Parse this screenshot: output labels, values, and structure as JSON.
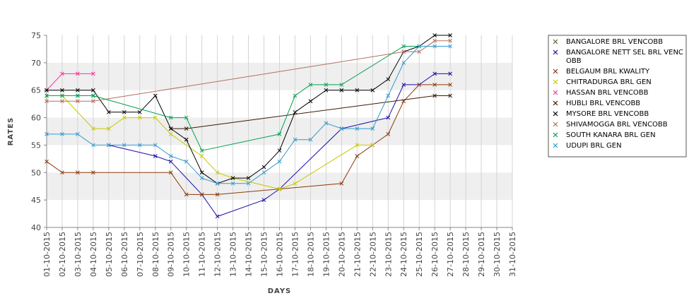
{
  "chart_data": {
    "type": "line",
    "xlabel": "DAYS",
    "ylabel": "RATES",
    "ylim": [
      40,
      75
    ],
    "yticks": [
      40,
      45,
      50,
      55,
      60,
      65,
      70,
      75
    ],
    "grid": "alternating horizontal bands",
    "legend_position": "right",
    "categories": [
      "01-10-2015",
      "02-10-2015",
      "03-10-2015",
      "04-10-2015",
      "05-10-2015",
      "06-10-2015",
      "07-10-2015",
      "08-10-2015",
      "09-10-2015",
      "10-10-2015",
      "11-10-2015",
      "12-10-2015",
      "13-10-2015",
      "14-10-2015",
      "15-10-2015",
      "16-10-2015",
      "17-10-2015",
      "18-10-2015",
      "19-10-2015",
      "20-10-2015",
      "21-10-2015",
      "22-10-2015",
      "23-10-2015",
      "24-10-2015",
      "25-10-2015",
      "26-10-2015",
      "27-10-2015",
      "28-10-2015",
      "29-10-2015",
      "30-10-2015",
      "31-10-2015"
    ],
    "series": [
      {
        "name": "BANGALORE BRL VENCOBB",
        "color": "#556b2f",
        "values": [
          64,
          64,
          64,
          64,
          null,
          null,
          null,
          null,
          null,
          null,
          null,
          null,
          null,
          null,
          null,
          null,
          null,
          null,
          null,
          null,
          null,
          null,
          null,
          null,
          null,
          null,
          null,
          null,
          null,
          null,
          null
        ]
      },
      {
        "name": "BANGALORE NETT SEL BRL VENCOBB",
        "color": "#1a0dab",
        "values": [
          null,
          null,
          null,
          null,
          55,
          null,
          null,
          53,
          52,
          null,
          46,
          42,
          null,
          null,
          45,
          47,
          null,
          null,
          null,
          58,
          null,
          null,
          60,
          66,
          66,
          68,
          68,
          null,
          null,
          null,
          null
        ]
      },
      {
        "name": "BELGAUM BRL KWALITY",
        "color": "#8b3a0e",
        "values": [
          52,
          50,
          50,
          50,
          null,
          null,
          null,
          null,
          50,
          46,
          46,
          46,
          null,
          null,
          null,
          47,
          null,
          null,
          null,
          48,
          53,
          55,
          57,
          63,
          66,
          66,
          66,
          null,
          null,
          null,
          null
        ]
      },
      {
        "name": "CHITRADURGA BRL GEN",
        "color": "#c8c800",
        "values": [
          64,
          64,
          null,
          58,
          58,
          60,
          60,
          60,
          57,
          null,
          53,
          50,
          49,
          null,
          null,
          47,
          48,
          null,
          null,
          null,
          55,
          55,
          null,
          null,
          null,
          null,
          null,
          null,
          null,
          null,
          null
        ]
      },
      {
        "name": "HASSAN BRL VENCOBB",
        "color": "#ff3399",
        "values": [
          65,
          68,
          68,
          68,
          null,
          null,
          null,
          null,
          null,
          null,
          null,
          null,
          null,
          null,
          null,
          null,
          null,
          null,
          null,
          null,
          null,
          null,
          null,
          null,
          null,
          null,
          null,
          null,
          null,
          null,
          null
        ]
      },
      {
        "name": "HUBLI BRL VENCOBB",
        "color": "#3b1a08",
        "values": [
          null,
          null,
          null,
          null,
          null,
          null,
          null,
          null,
          58,
          58,
          null,
          null,
          null,
          null,
          null,
          null,
          null,
          null,
          null,
          null,
          null,
          null,
          null,
          null,
          null,
          64,
          64,
          null,
          null,
          null,
          null
        ]
      },
      {
        "name": "MYSORE BRL VENCOBB",
        "color": "#000000",
        "values": [
          65,
          65,
          65,
          65,
          61,
          61,
          61,
          64,
          58,
          56,
          50,
          48,
          49,
          49,
          51,
          54,
          61,
          63,
          65,
          65,
          65,
          65,
          67,
          72,
          73,
          75,
          75,
          null,
          null,
          null,
          null
        ]
      },
      {
        "name": "SHIVAMOGGA BRL VENCOBB",
        "color": "#b07060",
        "values": [
          63,
          63,
          63,
          63,
          null,
          null,
          null,
          null,
          null,
          null,
          null,
          null,
          null,
          null,
          null,
          null,
          null,
          null,
          null,
          null,
          null,
          null,
          null,
          72,
          72,
          74,
          74,
          null,
          null,
          null,
          null
        ]
      },
      {
        "name": "SOUTH KANARA BRL GEN",
        "color": "#00a050",
        "values": [
          64,
          64,
          64,
          64,
          null,
          null,
          null,
          null,
          60,
          60,
          54,
          null,
          null,
          null,
          null,
          57,
          64,
          66,
          66,
          66,
          null,
          null,
          null,
          73,
          73,
          null,
          null,
          null,
          null,
          null,
          null
        ]
      },
      {
        "name": "UDUPI BRL GEN",
        "color": "#3399cc",
        "values": [
          57,
          57,
          57,
          55,
          55,
          55,
          55,
          55,
          53,
          52,
          49,
          48,
          48,
          48,
          50,
          52,
          56,
          56,
          59,
          58,
          58,
          58,
          64,
          70,
          73,
          73,
          73,
          null,
          null,
          null,
          null
        ]
      }
    ]
  }
}
